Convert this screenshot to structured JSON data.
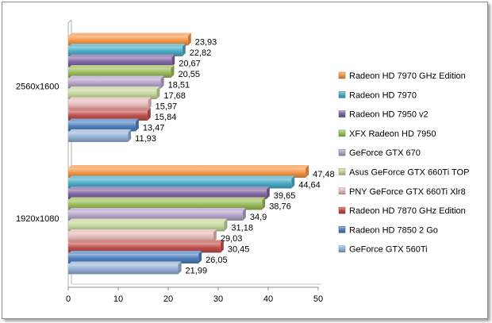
{
  "chart_data": {
    "type": "bar",
    "orientation": "horizontal",
    "categories": [
      "2560x1600",
      "1920x1080"
    ],
    "series": [
      {
        "name": "Radeon HD 7970 GHz Edition",
        "color": "#f79646",
        "values": [
          23.93,
          47.48
        ]
      },
      {
        "name": "Radeon HD 7970",
        "color": "#4bacc6",
        "values": [
          22.82,
          44.64
        ]
      },
      {
        "name": "Radeon HD  7950 v2",
        "color": "#8064a2",
        "values": [
          20.67,
          39.65
        ]
      },
      {
        "name": "XFX Radeon HD 7950",
        "color": "#9bbb59",
        "values": [
          20.55,
          38.76
        ]
      },
      {
        "name": "GeForce GTX 670",
        "color": "#b3a2c7",
        "values": [
          18.51,
          34.9
        ]
      },
      {
        "name": "Asus GeForce GTX 660Ti TOP",
        "color": "#c3d69b",
        "values": [
          17.68,
          31.18
        ]
      },
      {
        "name": "PNY GeForce GTX 660Ti Xlr8",
        "color": "#e6b9b8",
        "values": [
          15.97,
          29.03
        ]
      },
      {
        "name": "Radeon HD 7870 GHz Edition",
        "color": "#c0504d",
        "values": [
          15.84,
          30.45
        ]
      },
      {
        "name": "Radeon HD 7850 2 Go",
        "color": "#4f81bd",
        "values": [
          13.47,
          26.05
        ]
      },
      {
        "name": "GeForce GTX 560Ti",
        "color": "#95b3d7",
        "values": [
          11.93,
          21.99
        ]
      }
    ],
    "value_labels": [
      [
        "23,93",
        "47,48"
      ],
      [
        "22,82",
        "44,64"
      ],
      [
        "20,67",
        "39,65"
      ],
      [
        "20,55",
        "38,76"
      ],
      [
        "18,51",
        "34,9"
      ],
      [
        "17,68",
        "31,18"
      ],
      [
        "15,97",
        "29,03"
      ],
      [
        "15,84",
        "30,45"
      ],
      [
        "13,47",
        "26,05"
      ],
      [
        "11,93",
        "21,99"
      ]
    ],
    "xlim": [
      0,
      50
    ],
    "x_ticks": [
      "0",
      "10",
      "20",
      "30",
      "40",
      "50"
    ],
    "grid": false,
    "legend_position": "right"
  }
}
